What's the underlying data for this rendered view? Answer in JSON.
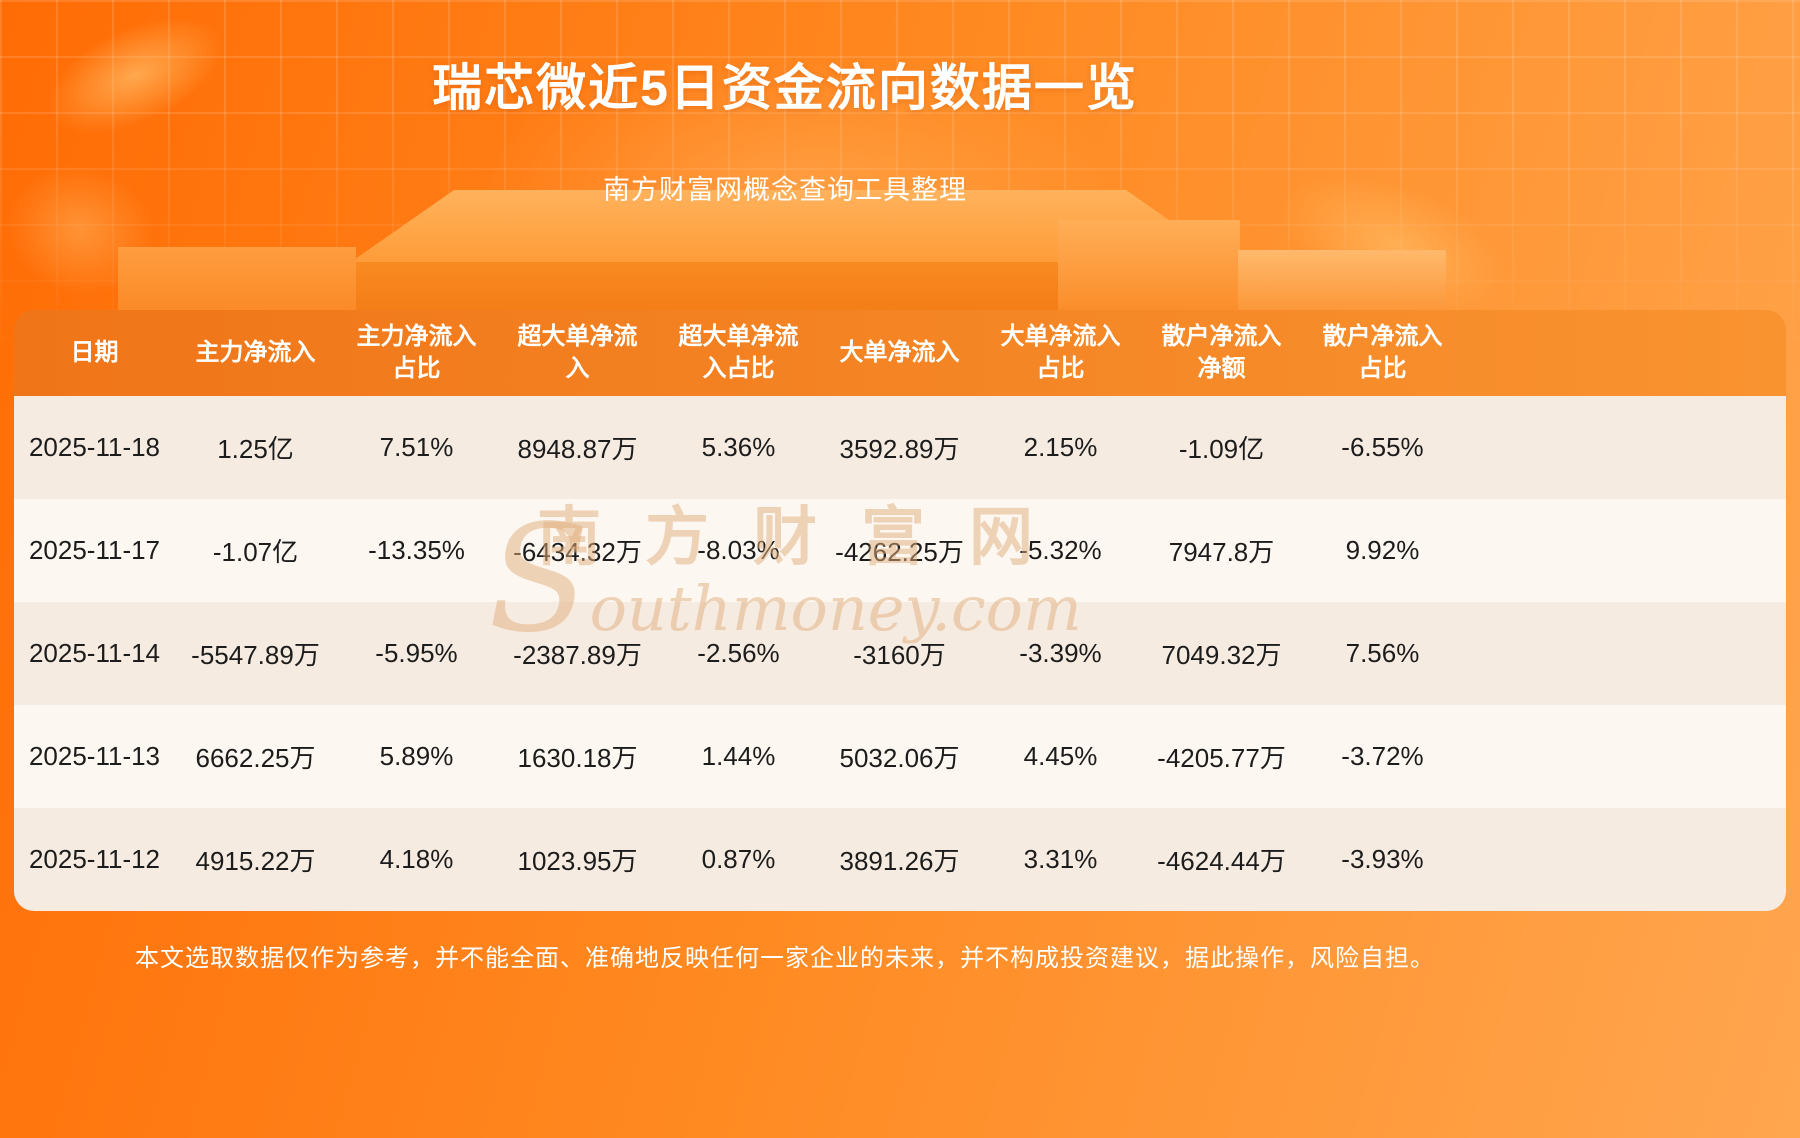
{
  "page": {
    "title": "瑞芯微近5日资金流向数据一览",
    "subtitle": "南方财富网概念查询工具整理",
    "footer": "本文选取数据仅作为参考，并不能全面、准确地反映任何一家企业的未来，并不构成投资建议，据此操作，风险自担。",
    "watermark_cn": "南方财富网",
    "watermark_en": "Southmoney.com"
  },
  "colors": {
    "bg-start": "#ff6c05",
    "bg-end": "#ffa64f",
    "header-start": "#ef7518",
    "header-end": "#f99330",
    "row-odd": "#f6ebe1",
    "row-even": "#fdf7f1",
    "cell-text": "#1c1c1c"
  },
  "chart_data": {
    "type": "table",
    "title": "瑞芯微近5日资金流向数据一览",
    "columns": [
      "日期",
      "主力净流入",
      "主力净流入占比",
      "超大单净流入",
      "超大单净流入占比",
      "大单净流入",
      "大单净流入占比",
      "散户净流入净额",
      "散户净流入占比"
    ],
    "rows": [
      [
        "2025-11-18",
        "1.25亿",
        "7.51%",
        "8948.87万",
        "5.36%",
        "3592.89万",
        "2.15%",
        "-1.09亿",
        "-6.55%"
      ],
      [
        "2025-11-17",
        "-1.07亿",
        "-13.35%",
        "-6434.32万",
        "-8.03%",
        "-4262.25万",
        "-5.32%",
        "7947.8万",
        "9.92%"
      ],
      [
        "2025-11-14",
        "-5547.89万",
        "-5.95%",
        "-2387.89万",
        "-2.56%",
        "-3160万",
        "-3.39%",
        "7049.32万",
        "7.56%"
      ],
      [
        "2025-11-13",
        "6662.25万",
        "5.89%",
        "1630.18万",
        "1.44%",
        "5032.06万",
        "4.45%",
        "-4205.77万",
        "-3.72%"
      ],
      [
        "2025-11-12",
        "4915.22万",
        "4.18%",
        "1023.95万",
        "0.87%",
        "3891.26万",
        "3.31%",
        "-4624.44万",
        "-3.93%"
      ]
    ]
  }
}
